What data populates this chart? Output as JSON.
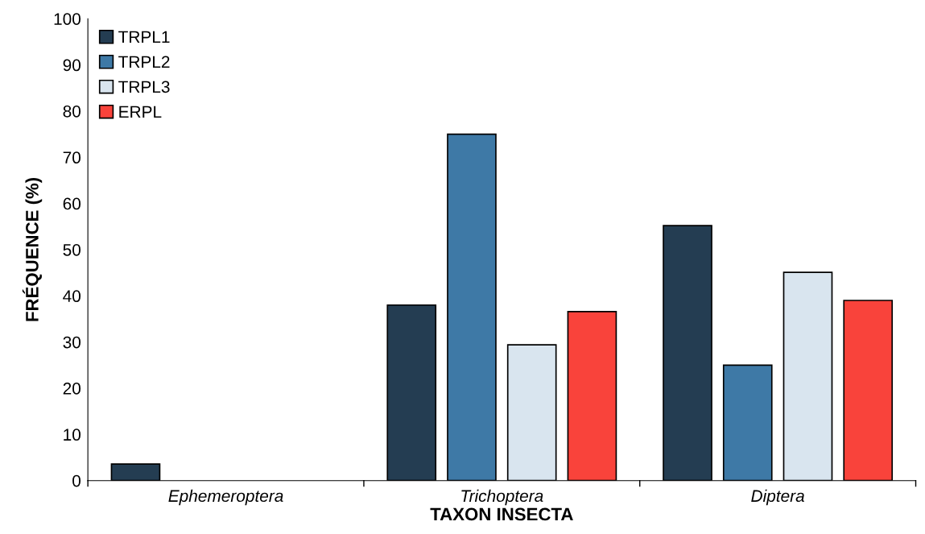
{
  "chart_data": {
    "type": "bar",
    "xlabel": "TAXON INSECTA",
    "ylabel": "FRÉQUENCE (%)",
    "categories": [
      "Ephemeroptera",
      "Trichoptera",
      "Diptera"
    ],
    "series": [
      {
        "name": "TRPL1",
        "color": "#243d52",
        "values": [
          3.6,
          38,
          55.2
        ]
      },
      {
        "name": "TRPL2",
        "color": "#3e79a6",
        "values": [
          null,
          75,
          25
        ]
      },
      {
        "name": "TRPL3",
        "color": "#d9e5ef",
        "values": [
          null,
          29.4,
          45.1
        ]
      },
      {
        "name": "ERPL",
        "color": "#f9433b",
        "values": [
          null,
          36.6,
          39
        ]
      }
    ],
    "ylim": [
      0,
      100
    ],
    "yticks": [
      0,
      10,
      20,
      30,
      40,
      50,
      60,
      70,
      80,
      90,
      100
    ],
    "grid": false,
    "legend": "top left"
  }
}
